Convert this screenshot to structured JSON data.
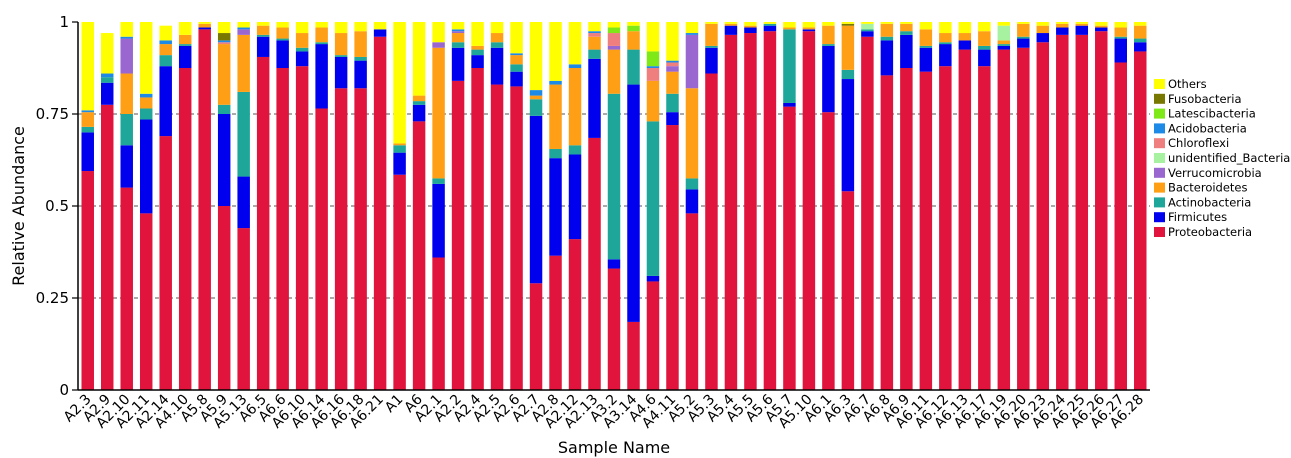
{
  "chart_data": {
    "type": "bar",
    "stacked": true,
    "xlabel": "Sample Name",
    "ylabel": "Relative Abundance",
    "ylim": [
      0,
      1
    ],
    "yticks": [
      "0",
      "0.25",
      "0.5",
      "0.75",
      "1"
    ],
    "grid": "horizontal dashed",
    "legend_position": "right",
    "categories": [
      "A2.3",
      "A2.9",
      "A2.10",
      "A2.11",
      "A2.14",
      "A4.10",
      "A5.8",
      "A5.9",
      "A5.13",
      "A6.5",
      "A6.6",
      "A6.10",
      "A6.14",
      "A6.16",
      "A6.18",
      "A6.21",
      "A1",
      "A6",
      "A2.1",
      "A2.2",
      "A2.4",
      "A2.5",
      "A2.6",
      "A2.7",
      "A2.8",
      "A2.12",
      "A2.13",
      "A3.2",
      "A3.14",
      "A4.6",
      "A4.11",
      "A5.2",
      "A5.3",
      "A5.4",
      "A5.5",
      "A5.6",
      "A5.7",
      "A5.10",
      "A6.1",
      "A6.3",
      "A6.7",
      "A6.8",
      "A6.9",
      "A6.11",
      "A6.12",
      "A6.13",
      "A6.17",
      "A6.19",
      "A6.20",
      "A6.23",
      "A6.24",
      "A6.25",
      "A6.26",
      "A6.27",
      "A6.28"
    ],
    "series": [
      {
        "name": "Proteobacteria",
        "color": "#e0143c",
        "values": [
          0.595,
          0.775,
          0.55,
          0.48,
          0.69,
          0.875,
          0.98,
          0.5,
          0.44,
          0.905,
          0.875,
          0.88,
          0.765,
          0.82,
          0.82,
          0.96,
          0.585,
          0.73,
          0.36,
          0.84,
          0.875,
          0.83,
          0.825,
          0.29,
          0.365,
          0.41,
          0.685,
          0.33,
          0.185,
          0.295,
          0.72,
          0.48,
          0.86,
          0.965,
          0.97,
          0.975,
          0.77,
          0.975,
          0.755,
          0.54,
          0.96,
          0.855,
          0.875,
          0.865,
          0.88,
          0.925,
          0.88,
          0.925,
          0.93,
          0.945,
          0.965,
          0.965,
          0.975,
          0.89,
          0.92
        ]
      },
      {
        "name": "Firmicutes",
        "color": "#0000ee",
        "values": [
          0.105,
          0.06,
          0.115,
          0.255,
          0.19,
          0.06,
          0.005,
          0.25,
          0.14,
          0.055,
          0.075,
          0.04,
          0.175,
          0.085,
          0.075,
          0.02,
          0.06,
          0.045,
          0.2,
          0.09,
          0.035,
          0.1,
          0.04,
          0.455,
          0.265,
          0.23,
          0.215,
          0.025,
          0.645,
          0.015,
          0.035,
          0.065,
          0.07,
          0.025,
          0.015,
          0.015,
          0.01,
          0.005,
          0.18,
          0.305,
          0.015,
          0.095,
          0.09,
          0.065,
          0.06,
          0.025,
          0.045,
          0.01,
          0.025,
          0.025,
          0.02,
          0.025,
          0.01,
          0.065,
          0.025
        ]
      },
      {
        "name": "Actinobacteria",
        "color": "#1fa69a",
        "values": [
          0.015,
          0.015,
          0.085,
          0.03,
          0.03,
          0.005,
          0,
          0.025,
          0.23,
          0.005,
          0.005,
          0.01,
          0.005,
          0.005,
          0.01,
          0,
          0.02,
          0.01,
          0.015,
          0.015,
          0.015,
          0.015,
          0.02,
          0.045,
          0.025,
          0.025,
          0.025,
          0.45,
          0.095,
          0.42,
          0.05,
          0.03,
          0.005,
          0,
          0,
          0.005,
          0.2,
          0,
          0.005,
          0.025,
          0.005,
          0.01,
          0.01,
          0.005,
          0.005,
          0,
          0.01,
          0.005,
          0.005,
          0,
          0,
          0,
          0,
          0.005,
          0.01
        ]
      },
      {
        "name": "Bacteroidetes",
        "color": "#ff9f15",
        "values": [
          0.04,
          0,
          0.11,
          0.03,
          0.03,
          0.025,
          0.01,
          0.165,
          0.155,
          0.025,
          0.03,
          0.04,
          0.04,
          0.06,
          0.07,
          0,
          0.005,
          0.015,
          0.355,
          0.025,
          0.01,
          0.025,
          0.025,
          0.01,
          0.175,
          0.21,
          0.035,
          0.12,
          0.05,
          0.11,
          0.06,
          0.245,
          0.06,
          0.005,
          0.005,
          0,
          0.005,
          0.005,
          0.05,
          0.12,
          0,
          0.035,
          0.02,
          0.045,
          0.025,
          0.02,
          0.04,
          0.01,
          0.035,
          0.02,
          0.01,
          0.005,
          0.005,
          0.025,
          0.035
        ]
      },
      {
        "name": "Verrucomicrobia",
        "color": "#9a66d0",
        "values": [
          0,
          0,
          0.095,
          0,
          0,
          0,
          0,
          0,
          0.015,
          0,
          0,
          0,
          0,
          0,
          0,
          0,
          0,
          0,
          0.015,
          0.005,
          0,
          0,
          0,
          0,
          0,
          0,
          0,
          0.01,
          0,
          0,
          0.015,
          0.145,
          0,
          0,
          0,
          0,
          0,
          0,
          0,
          0,
          0,
          0,
          0,
          0,
          0,
          0,
          0,
          0,
          0,
          0,
          0,
          0,
          0,
          0,
          0
        ]
      },
      {
        "name": "unidentified_Bacteria",
        "color": "#a6f2a0",
        "values": [
          0,
          0,
          0,
          0,
          0,
          0,
          0,
          0,
          0,
          0,
          0,
          0,
          0,
          0,
          0,
          0,
          0,
          0,
          0,
          0,
          0,
          0,
          0,
          0,
          0,
          0,
          0,
          0,
          0,
          0,
          0,
          0,
          0,
          0,
          0,
          0,
          0,
          0,
          0,
          0,
          0.015,
          0,
          0,
          0,
          0,
          0,
          0,
          0.04,
          0,
          0,
          0,
          0,
          0,
          0,
          0
        ]
      },
      {
        "name": "Chloroflexi",
        "color": "#ef7f7f",
        "values": [
          0,
          0,
          0,
          0,
          0,
          0,
          0,
          0.005,
          0,
          0,
          0,
          0,
          0,
          0,
          0,
          0,
          0,
          0,
          0,
          0,
          0,
          0,
          0,
          0,
          0,
          0,
          0.01,
          0.035,
          0,
          0.035,
          0.01,
          0,
          0,
          0,
          0,
          0,
          0,
          0,
          0,
          0,
          0,
          0,
          0,
          0,
          0,
          0,
          0,
          0,
          0,
          0,
          0,
          0,
          0,
          0,
          0
        ]
      },
      {
        "name": "Acidobacteria",
        "color": "#1e8ae8",
        "values": [
          0.005,
          0.01,
          0.005,
          0.01,
          0.01,
          0,
          0,
          0.005,
          0.005,
          0,
          0,
          0,
          0,
          0,
          0,
          0,
          0,
          0,
          0,
          0.005,
          0,
          0,
          0.005,
          0.015,
          0.01,
          0.01,
          0.005,
          0,
          0,
          0.005,
          0.005,
          0.005,
          0,
          0,
          0,
          0,
          0,
          0,
          0,
          0,
          0,
          0,
          0,
          0,
          0,
          0,
          0,
          0,
          0,
          0,
          0,
          0,
          0,
          0,
          0
        ]
      },
      {
        "name": "Latescibacteria",
        "color": "#7fe817",
        "values": [
          0,
          0,
          0,
          0,
          0,
          0,
          0,
          0,
          0,
          0,
          0,
          0,
          0,
          0,
          0,
          0,
          0,
          0,
          0,
          0,
          0,
          0,
          0,
          0,
          0,
          0,
          0,
          0.015,
          0.015,
          0.04,
          0,
          0,
          0,
          0,
          0,
          0,
          0,
          0,
          0,
          0,
          0,
          0,
          0,
          0,
          0,
          0,
          0,
          0,
          0,
          0,
          0,
          0,
          0,
          0,
          0
        ]
      },
      {
        "name": "Fusobacteria",
        "color": "#787800",
        "values": [
          0,
          0,
          0,
          0,
          0,
          0,
          0,
          0.02,
          0,
          0,
          0,
          0,
          0,
          0,
          0,
          0,
          0,
          0,
          0,
          0,
          0,
          0,
          0,
          0,
          0,
          0,
          0,
          0,
          0,
          0,
          0,
          0,
          0,
          0,
          0,
          0,
          0,
          0,
          0,
          0.005,
          0,
          0,
          0,
          0,
          0,
          0,
          0,
          0,
          0,
          0,
          0,
          0,
          0,
          0,
          0
        ]
      },
      {
        "name": "Others",
        "color": "#ffff00",
        "values": [
          0.24,
          0.11,
          0.04,
          0.195,
          0.04,
          0.035,
          0.005,
          0.03,
          0.015,
          0.01,
          0.015,
          0.03,
          0.015,
          0.03,
          0.025,
          0.02,
          0.33,
          0.2,
          0.055,
          0.02,
          0.065,
          0.03,
          0.085,
          0.185,
          0.16,
          0.115,
          0.025,
          0.015,
          0.01,
          0.08,
          0.105,
          0.03,
          0.005,
          0.005,
          0.01,
          0.005,
          0.015,
          0.015,
          0.01,
          0.005,
          0.005,
          0.005,
          0.005,
          0.02,
          0.03,
          0.03,
          0.025,
          0.01,
          0.005,
          0.01,
          0.005,
          0.005,
          0.01,
          0.015,
          0.01
        ]
      }
    ]
  }
}
